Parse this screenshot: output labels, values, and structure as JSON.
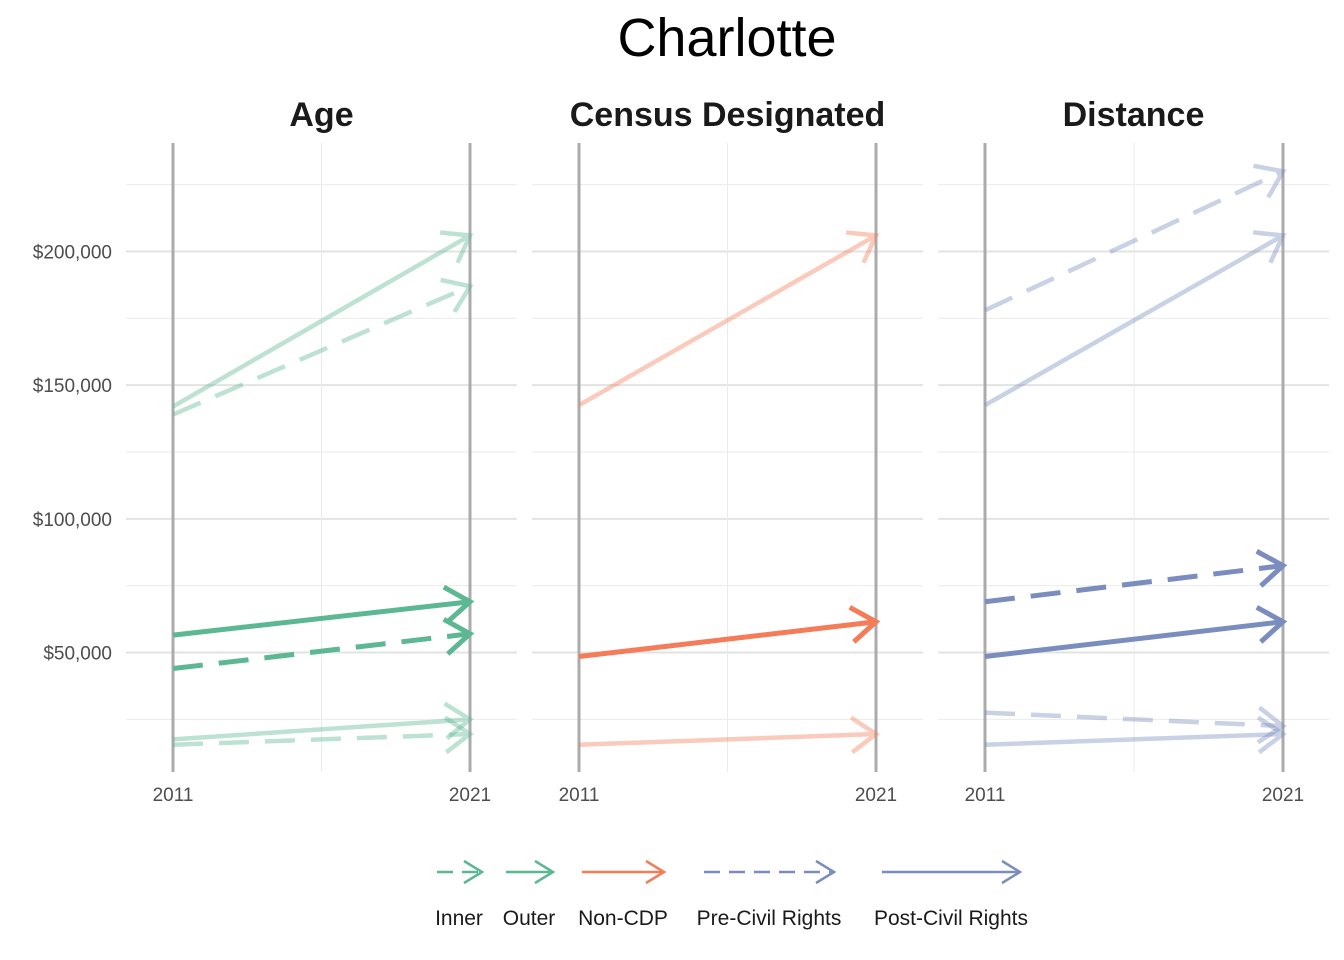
{
  "chart_data": {
    "type": "line",
    "title": "Charlotte",
    "x": [
      2011,
      2021
    ],
    "x_tick_labels": [
      "2011",
      "2021"
    ],
    "y_tick_labels": [
      "$50,000",
      "$100,000",
      "$150,000",
      "$200,000"
    ],
    "y_ticks": [
      50000,
      100000,
      150000,
      200000
    ],
    "ylim": [
      10000,
      232000
    ],
    "grid": true,
    "legend_position": "bottom",
    "colors": {
      "age": "#5cb893",
      "census": "#f47c58",
      "distance": "#7b8dbf"
    },
    "panels": [
      {
        "title": "Age",
        "color": "#5cb893",
        "series": [
          {
            "group": "Outer",
            "dash": false,
            "highlight": false,
            "values": [
              142000,
              206000
            ]
          },
          {
            "group": "Inner",
            "dash": true,
            "highlight": false,
            "values": [
              139000,
              187000
            ]
          },
          {
            "group": "Outer",
            "dash": false,
            "highlight": true,
            "values": [
              56500,
              69000
            ]
          },
          {
            "group": "Inner",
            "dash": true,
            "highlight": true,
            "values": [
              44000,
              57000
            ]
          },
          {
            "group": "Outer",
            "dash": false,
            "highlight": false,
            "values": [
              17500,
              25000
            ]
          },
          {
            "group": "Inner",
            "dash": true,
            "highlight": false,
            "values": [
              15500,
              19500
            ]
          }
        ]
      },
      {
        "title": "Census Designated",
        "color": "#f47c58",
        "series": [
          {
            "group": "Non-CDP",
            "dash": false,
            "highlight": false,
            "values": [
              142500,
              206000
            ]
          },
          {
            "group": "Non-CDP",
            "dash": false,
            "highlight": true,
            "values": [
              48500,
              61500
            ]
          },
          {
            "group": "Non-CDP",
            "dash": false,
            "highlight": false,
            "values": [
              15500,
              19500
            ]
          }
        ]
      },
      {
        "title": "Distance",
        "color": "#7b8dbf",
        "series": [
          {
            "group": "Pre-Civil Rights",
            "dash": true,
            "highlight": false,
            "values": [
              178000,
              230000
            ]
          },
          {
            "group": "Post-Civil Rights",
            "dash": false,
            "highlight": false,
            "values": [
              142500,
              206000
            ]
          },
          {
            "group": "Pre-Civil Rights",
            "dash": true,
            "highlight": true,
            "values": [
              69000,
              82500
            ]
          },
          {
            "group": "Post-Civil Rights",
            "dash": false,
            "highlight": true,
            "values": [
              48500,
              61500
            ]
          },
          {
            "group": "Pre-Civil Rights",
            "dash": true,
            "highlight": false,
            "values": [
              27500,
              22500
            ]
          },
          {
            "group": "Post-Civil Rights",
            "dash": false,
            "highlight": false,
            "values": [
              15500,
              19500
            ]
          }
        ]
      }
    ],
    "legend": [
      {
        "label": "Inner",
        "color": "#5cb893",
        "dash": true
      },
      {
        "label": "Outer",
        "color": "#5cb893",
        "dash": false
      },
      {
        "label": "Non-CDP",
        "color": "#f47c58",
        "dash": false
      },
      {
        "label": "Pre-Civil Rights",
        "color": "#7b8dbf",
        "dash": true
      },
      {
        "label": "Post-Civil Rights",
        "color": "#7b8dbf",
        "dash": false
      }
    ]
  }
}
